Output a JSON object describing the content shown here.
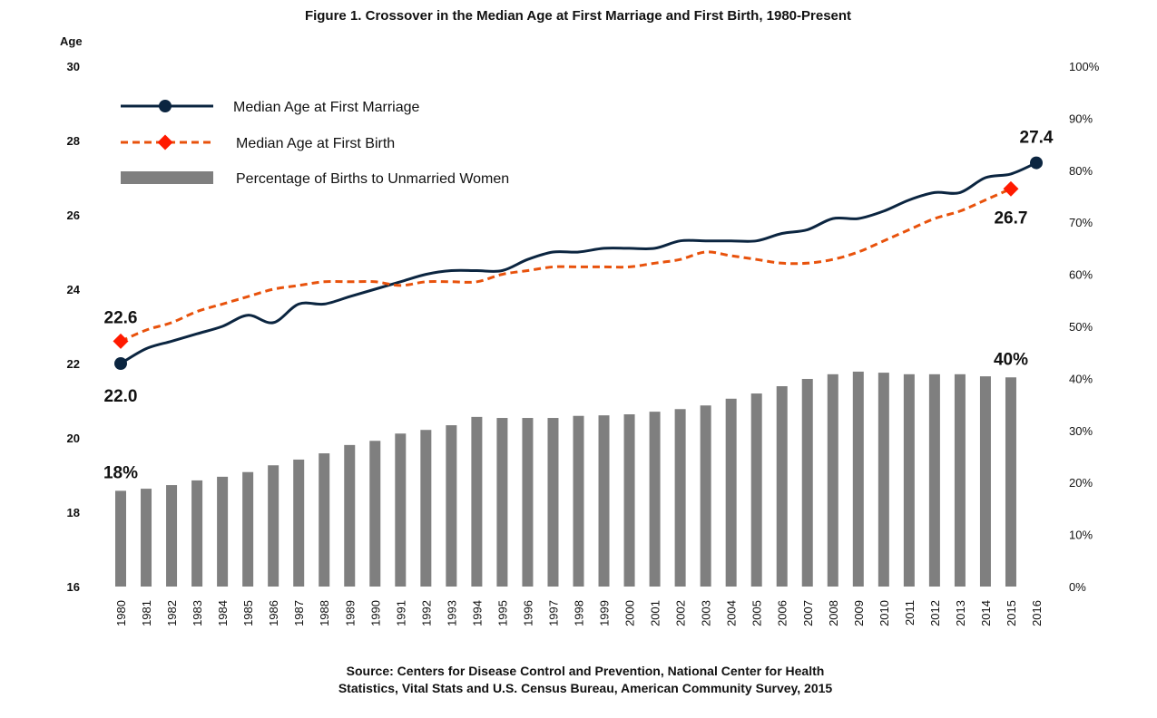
{
  "chart_data": {
    "type": "bar+line",
    "title": "Figure 1. Crossover in the Median Age at First Marriage and First Birth, 1980-Present",
    "y_left_label": "Age",
    "y_left_range": [
      16,
      30
    ],
    "y_left_ticks": [
      "16",
      "18",
      "20",
      "22",
      "24",
      "26",
      "28",
      "30"
    ],
    "y_right_range": [
      0,
      100
    ],
    "y_right_ticks": [
      "0%",
      "10%",
      "20%",
      "30%",
      "40%",
      "50%",
      "60%",
      "70%",
      "80%",
      "90%",
      "100%"
    ],
    "grid": false,
    "legend_placement": "top-left",
    "categories": [
      "1980",
      "1981",
      "1982",
      "1983",
      "1984",
      "1985",
      "1986",
      "1987",
      "1988",
      "1989",
      "1990",
      "1991",
      "1992",
      "1993",
      "1994",
      "1995",
      "1996",
      "1997",
      "1998",
      "1999",
      "2000",
      "2001",
      "2002",
      "2003",
      "2004",
      "2005",
      "2006",
      "2007",
      "2008",
      "2009",
      "2010",
      "2011",
      "2012",
      "2013",
      "2014",
      "2015",
      "2016"
    ],
    "series": [
      {
        "name": "Median Age at First Marriage",
        "type": "line",
        "axis": "left",
        "color": "#0b2540",
        "values": [
          22.0,
          22.4,
          22.6,
          22.8,
          23.0,
          23.3,
          23.1,
          23.6,
          23.6,
          23.8,
          24.0,
          24.2,
          24.4,
          24.5,
          24.5,
          24.5,
          24.8,
          25.0,
          25.0,
          25.1,
          25.1,
          25.1,
          25.3,
          25.3,
          25.3,
          25.3,
          25.5,
          25.6,
          25.9,
          25.9,
          26.1,
          26.4,
          26.6,
          26.6,
          27.0,
          27.1,
          27.4
        ]
      },
      {
        "name": "Median Age at First Birth",
        "type": "line",
        "axis": "left",
        "color": "#e8520c",
        "values": [
          22.6,
          22.9,
          23.1,
          23.4,
          23.6,
          23.8,
          24.0,
          24.1,
          24.2,
          24.2,
          24.2,
          24.1,
          24.2,
          24.2,
          24.2,
          24.4,
          24.5,
          24.6,
          24.6,
          24.6,
          24.6,
          24.7,
          24.8,
          25.0,
          24.9,
          24.8,
          24.7,
          24.7,
          24.8,
          25.0,
          25.3,
          25.6,
          25.9,
          26.1,
          26.4,
          26.7,
          null
        ]
      },
      {
        "name": "Percentage of Births to Unmarried Women",
        "type": "bar",
        "axis": "right",
        "color": "#7f7f7f",
        "values": [
          18.4,
          18.8,
          19.5,
          20.4,
          21.1,
          22.0,
          23.3,
          24.4,
          25.6,
          27.2,
          28.0,
          29.4,
          30.1,
          31.0,
          32.6,
          32.4,
          32.4,
          32.4,
          32.8,
          32.9,
          33.1,
          33.6,
          34.1,
          34.8,
          36.1,
          37.1,
          38.5,
          39.9,
          40.8,
          41.3,
          41.1,
          40.8,
          40.8,
          40.8,
          40.4,
          40.2,
          null
        ]
      }
    ],
    "annotations": [
      {
        "text": "22.0",
        "series": 0,
        "category": "1980"
      },
      {
        "text": "27.4",
        "series": 0,
        "category": "2016"
      },
      {
        "text": "22.6",
        "series": 1,
        "category": "1980"
      },
      {
        "text": "26.7",
        "series": 1,
        "category": "2015"
      },
      {
        "text": "18%",
        "series": 2,
        "category": "1980"
      },
      {
        "text": "40%",
        "series": 2,
        "category": "2015"
      }
    ],
    "source": [
      "Source: Centers for Disease Control and Prevention, National Center for Health",
      "Statistics, Vital Stats and U.S. Census Bureau, American Community Survey, 2015"
    ]
  }
}
